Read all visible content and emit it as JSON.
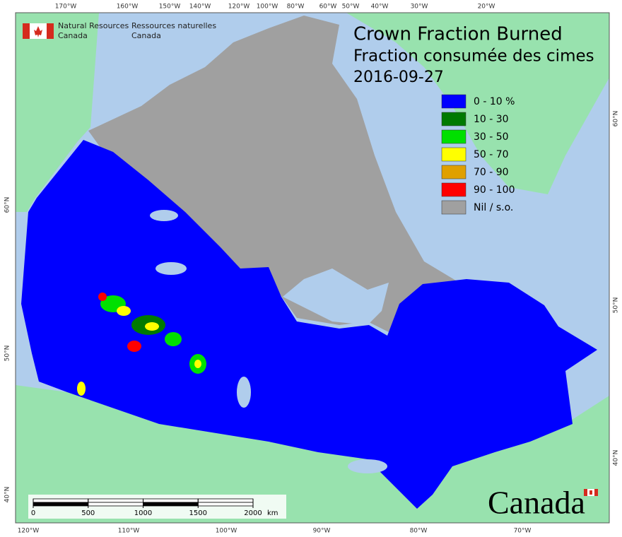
{
  "header": {
    "title": "Crown Fraction Burned",
    "title_fr": "Fraction consumée des cimes",
    "date": "2016-09-27"
  },
  "agency": {
    "en": [
      "Natural Resources",
      "Canada"
    ],
    "fr": [
      "Ressources naturelles",
      "Canada"
    ]
  },
  "legend": [
    {
      "label": "0 - 10 %",
      "color": "#0000ff"
    },
    {
      "label": "10 - 30",
      "color": "#007a00"
    },
    {
      "label": "30 - 50",
      "color": "#00e000"
    },
    {
      "label": "50 - 70",
      "color": "#ffff00"
    },
    {
      "label": "70 - 90",
      "color": "#e0a000"
    },
    {
      "label": "90 - 100",
      "color": "#ff0000"
    },
    {
      "label": "Nil / s.o.",
      "color": "#a0a0a0"
    }
  ],
  "graticule": {
    "top": [
      "170°W",
      "160°W",
      "150°W",
      "140°W",
      "120°W",
      "100°W",
      "80°W",
      "60°W",
      "50°W",
      "40°W",
      "30°W",
      "20°W"
    ],
    "bottom": [
      "120°W",
      "110°W",
      "100°W",
      "90°W",
      "80°W",
      "70°W"
    ],
    "left": [
      "60°N",
      "50°N",
      "40°N"
    ],
    "right": [
      "60°N",
      "50°N",
      "40°N"
    ]
  },
  "scale_bar": {
    "ticks": [
      0,
      500,
      1000,
      1500,
      2000
    ],
    "unit": "km"
  },
  "wordmark": "Canada"
}
